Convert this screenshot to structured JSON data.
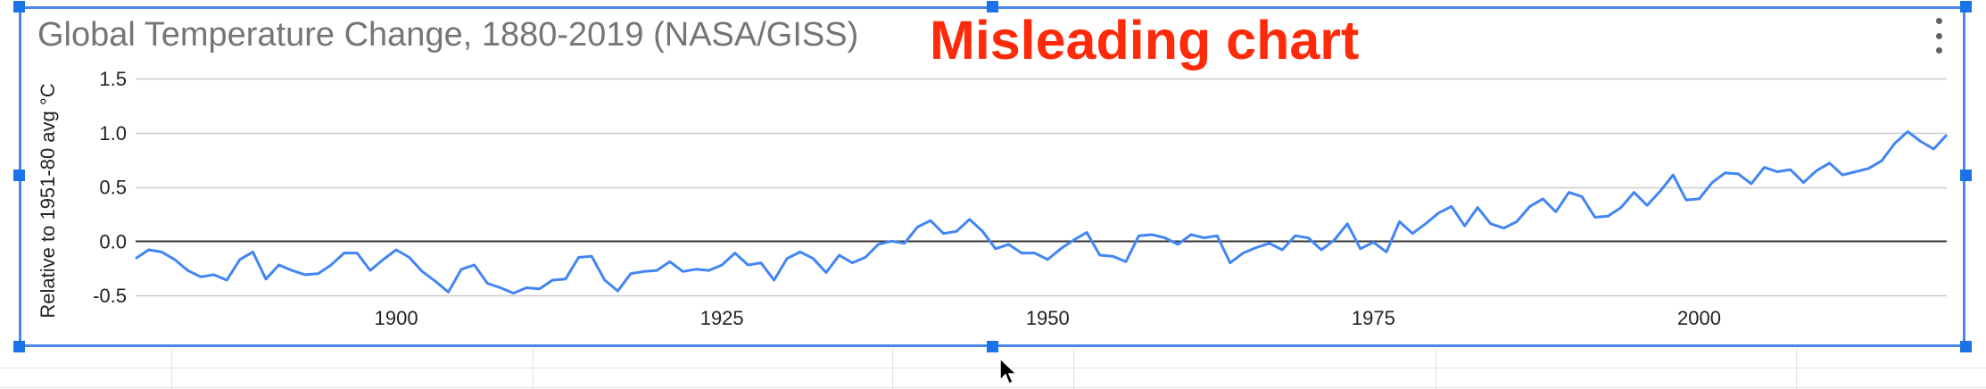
{
  "chart": {
    "title": "Global Temperature Change, 1880-2019 (NASA/GISS)",
    "annotation": "Misleading chart",
    "ylabel": "Relative to 1951-80 avg °C",
    "menu_icon": "more-vertical-icon"
  },
  "colors": {
    "line": "#4285f4",
    "annotation": "#ff2a0a",
    "title": "#757575",
    "selection": "#1a73e8"
  },
  "chart_data": {
    "type": "line",
    "title": "Global Temperature Change, 1880-2019 (NASA/GISS)",
    "xlabel": "",
    "ylabel": "Relative to 1951-80 avg °C",
    "xlim": [
      1880,
      2019
    ],
    "ylim": [
      -0.5,
      1.5
    ],
    "yticks": [
      1.5,
      1.0,
      0.5,
      0.0,
      -0.5
    ],
    "ytick_labels": [
      "1.5",
      "1.0",
      "0.5",
      "0.0",
      "-0.5"
    ],
    "xticks": [
      1900,
      1925,
      1950,
      1975,
      2000
    ],
    "xtick_labels": [
      "1900",
      "1925",
      "1950",
      "1975",
      "2000"
    ],
    "grid": true,
    "legend": "none",
    "series": [
      {
        "x": [
          1880,
          1881,
          1882,
          1883,
          1884,
          1885,
          1886,
          1887,
          1888,
          1889,
          1890,
          1891,
          1892,
          1893,
          1894,
          1895,
          1896,
          1897,
          1898,
          1899,
          1900,
          1901,
          1902,
          1903,
          1904,
          1905,
          1906,
          1907,
          1908,
          1909,
          1910,
          1911,
          1912,
          1913,
          1914,
          1915,
          1916,
          1917,
          1918,
          1919,
          1920,
          1921,
          1922,
          1923,
          1924,
          1925,
          1926,
          1927,
          1928,
          1929,
          1930,
          1931,
          1932,
          1933,
          1934,
          1935,
          1936,
          1937,
          1938,
          1939,
          1940,
          1941,
          1942,
          1943,
          1944,
          1945,
          1946,
          1947,
          1948,
          1949,
          1950,
          1951,
          1952,
          1953,
          1954,
          1955,
          1956,
          1957,
          1958,
          1959,
          1960,
          1961,
          1962,
          1963,
          1964,
          1965,
          1966,
          1967,
          1968,
          1969,
          1970,
          1971,
          1972,
          1973,
          1974,
          1975,
          1976,
          1977,
          1978,
          1979,
          1980,
          1981,
          1982,
          1983,
          1984,
          1985,
          1986,
          1987,
          1988,
          1989,
          1990,
          1991,
          1992,
          1993,
          1994,
          1995,
          1996,
          1997,
          1998,
          1999,
          2000,
          2001,
          2002,
          2003,
          2004,
          2005,
          2006,
          2007,
          2008,
          2009,
          2010,
          2011,
          2012,
          2013,
          2014,
          2015,
          2016,
          2017,
          2018,
          2019
        ],
        "values": [
          -0.16,
          -0.08,
          -0.1,
          -0.17,
          -0.27,
          -0.33,
          -0.31,
          -0.36,
          -0.17,
          -0.1,
          -0.35,
          -0.22,
          -0.27,
          -0.31,
          -0.3,
          -0.22,
          -0.11,
          -0.11,
          -0.27,
          -0.17,
          -0.08,
          -0.15,
          -0.28,
          -0.37,
          -0.47,
          -0.26,
          -0.22,
          -0.39,
          -0.43,
          -0.48,
          -0.43,
          -0.44,
          -0.36,
          -0.35,
          -0.15,
          -0.14,
          -0.36,
          -0.46,
          -0.3,
          -0.28,
          -0.27,
          -0.19,
          -0.28,
          -0.26,
          -0.27,
          -0.22,
          -0.11,
          -0.22,
          -0.2,
          -0.36,
          -0.16,
          -0.1,
          -0.16,
          -0.29,
          -0.13,
          -0.2,
          -0.15,
          -0.03,
          0.0,
          -0.02,
          0.13,
          0.19,
          0.07,
          0.09,
          0.2,
          0.09,
          -0.07,
          -0.03,
          -0.11,
          -0.11,
          -0.17,
          -0.07,
          0.01,
          0.08,
          -0.13,
          -0.14,
          -0.19,
          0.05,
          0.06,
          0.03,
          -0.03,
          0.06,
          0.03,
          0.05,
          -0.2,
          -0.11,
          -0.06,
          -0.02,
          -0.08,
          0.05,
          0.03,
          -0.08,
          0.01,
          0.16,
          -0.07,
          -0.01,
          -0.1,
          0.18,
          0.07,
          0.16,
          0.26,
          0.32,
          0.14,
          0.31,
          0.16,
          0.12,
          0.18,
          0.32,
          0.39,
          0.27,
          0.45,
          0.41,
          0.22,
          0.23,
          0.31,
          0.45,
          0.33,
          0.46,
          0.61,
          0.38,
          0.39,
          0.54,
          0.63,
          0.62,
          0.53,
          0.68,
          0.64,
          0.66,
          0.54,
          0.65,
          0.72,
          0.61,
          0.64,
          0.67,
          0.74,
          0.9,
          1.01,
          0.92,
          0.85,
          0.98
        ]
      }
    ]
  }
}
